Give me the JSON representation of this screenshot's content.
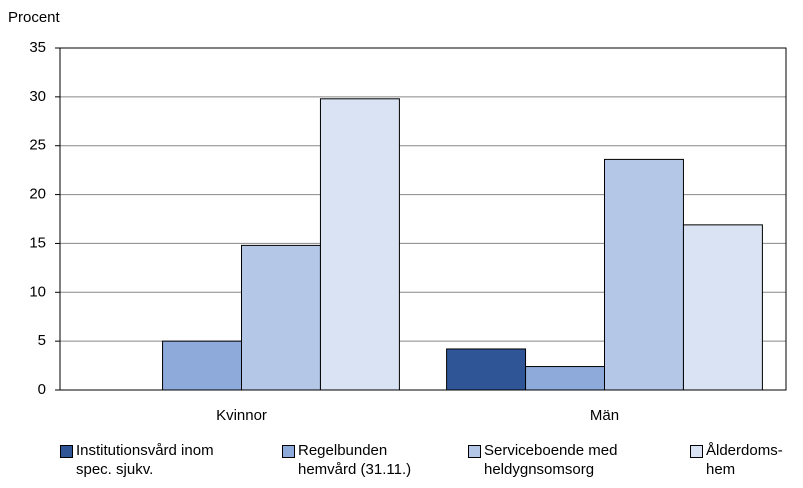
{
  "chart_data": {
    "type": "bar",
    "y_label": "Procent",
    "categories": [
      "Kvinnor",
      "Män"
    ],
    "series": [
      {
        "name": "Institutionsvård inom spec. sjukv.",
        "color": "#2f5597",
        "values": [
          0,
          4.2
        ]
      },
      {
        "name": "Regelbunden hemvård (31.11.)",
        "color": "#8eaadb",
        "values": [
          5,
          2.4
        ]
      },
      {
        "name": "Serviceboende med heldygnsomsorg",
        "color": "#b4c7e7",
        "values": [
          14.8,
          23.6
        ]
      },
      {
        "name": "Ålderdoms-hem",
        "color": "#dae3f3",
        "values": [
          29.8,
          16.9
        ]
      }
    ],
    "ylim": [
      0,
      35
    ],
    "yticks": [
      0,
      5,
      10,
      15,
      20,
      25,
      30,
      35
    ],
    "grid": true,
    "legend": "bottom"
  }
}
